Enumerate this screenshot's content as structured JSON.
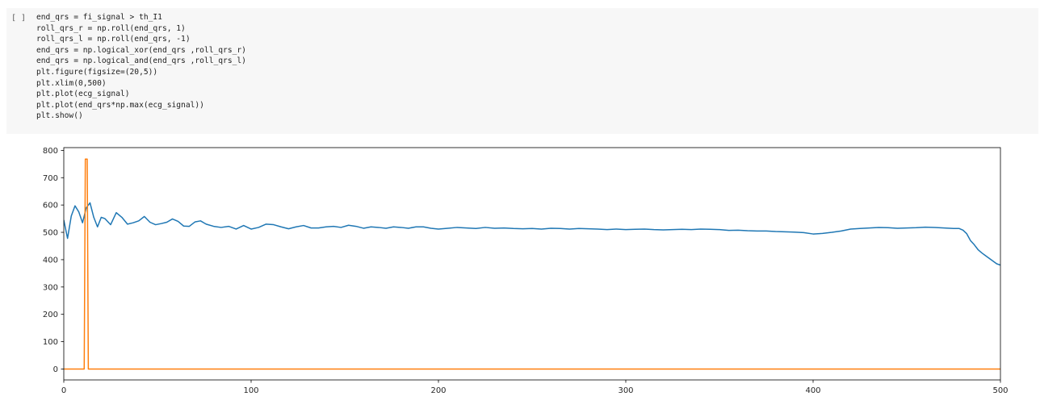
{
  "cell": {
    "prompt": "[ ]",
    "code_lines": [
      "end_qrs = fi_signal > th_I1",
      "roll_qrs_r = np.roll(end_qrs, 1)",
      "roll_qrs_l = np.roll(end_qrs, -1)",
      "end_qrs = np.logical_xor(end_qrs ,roll_qrs_r)",
      "end_qrs = np.logical_and(end_qrs ,roll_qrs_l)",
      "plt.figure(figsize=(20,5))",
      "plt.xlim(0,500)",
      "plt.plot(ecg_signal)",
      "plt.plot(end_qrs*np.max(ecg_signal))",
      "plt.show()"
    ]
  },
  "chart_data": {
    "type": "line",
    "title": "",
    "xlabel": "",
    "ylabel": "",
    "xlim": [
      0,
      500
    ],
    "ylim": [
      -40,
      810
    ],
    "xticks": [
      0,
      100,
      200,
      300,
      400,
      500
    ],
    "yticks": [
      0,
      100,
      200,
      300,
      400,
      500,
      600,
      700,
      800
    ],
    "grid": false,
    "series": [
      {
        "color": "#1f77b4",
        "x": [
          0,
          2,
          4,
          6,
          8,
          10,
          12,
          14,
          16,
          18,
          20,
          22,
          25,
          28,
          31,
          34,
          37,
          40,
          43,
          46,
          49,
          52,
          55,
          58,
          61,
          64,
          67,
          70,
          73,
          76,
          80,
          84,
          88,
          92,
          96,
          100,
          104,
          108,
          112,
          116,
          120,
          124,
          128,
          132,
          136,
          140,
          144,
          148,
          152,
          156,
          160,
          164,
          168,
          172,
          176,
          180,
          184,
          188,
          192,
          196,
          200,
          205,
          210,
          215,
          220,
          225,
          230,
          235,
          240,
          245,
          250,
          255,
          260,
          265,
          270,
          275,
          280,
          285,
          290,
          295,
          300,
          305,
          310,
          315,
          320,
          325,
          330,
          335,
          340,
          345,
          350,
          355,
          360,
          365,
          370,
          375,
          380,
          385,
          390,
          395,
          400,
          405,
          410,
          415,
          420,
          425,
          430,
          435,
          440,
          445,
          450,
          455,
          460,
          465,
          470,
          475,
          478,
          480,
          482,
          484,
          486,
          488,
          490,
          492,
          494,
          496,
          498,
          500
        ],
        "y": [
          545,
          478,
          560,
          597,
          575,
          535,
          590,
          608,
          555,
          520,
          555,
          550,
          528,
          572,
          555,
          530,
          535,
          542,
          558,
          537,
          528,
          532,
          537,
          549,
          540,
          523,
          522,
          538,
          542,
          530,
          522,
          518,
          522,
          512,
          525,
          512,
          518,
          530,
          528,
          520,
          513,
          520,
          525,
          516,
          516,
          520,
          522,
          518,
          526,
          522,
          515,
          520,
          518,
          515,
          520,
          518,
          515,
          520,
          520,
          515,
          512,
          515,
          518,
          516,
          514,
          518,
          515,
          516,
          514,
          513,
          514,
          512,
          515,
          514,
          512,
          514,
          513,
          512,
          510,
          512,
          510,
          511,
          512,
          510,
          509,
          510,
          511,
          510,
          512,
          511,
          510,
          507,
          508,
          506,
          505,
          505,
          503,
          502,
          501,
          499,
          494,
          496,
          500,
          505,
          512,
          514,
          516,
          518,
          517,
          515,
          516,
          517,
          519,
          518,
          516,
          514,
          514,
          508,
          495,
          470,
          455,
          437,
          425,
          415,
          405,
          395,
          385,
          380
        ]
      },
      {
        "color": "#ff7f0e",
        "x": [
          0,
          10.9,
          11.5,
          12.5,
          13.1,
          500
        ],
        "y": [
          0,
          0,
          768,
          768,
          0,
          0
        ]
      }
    ]
  }
}
